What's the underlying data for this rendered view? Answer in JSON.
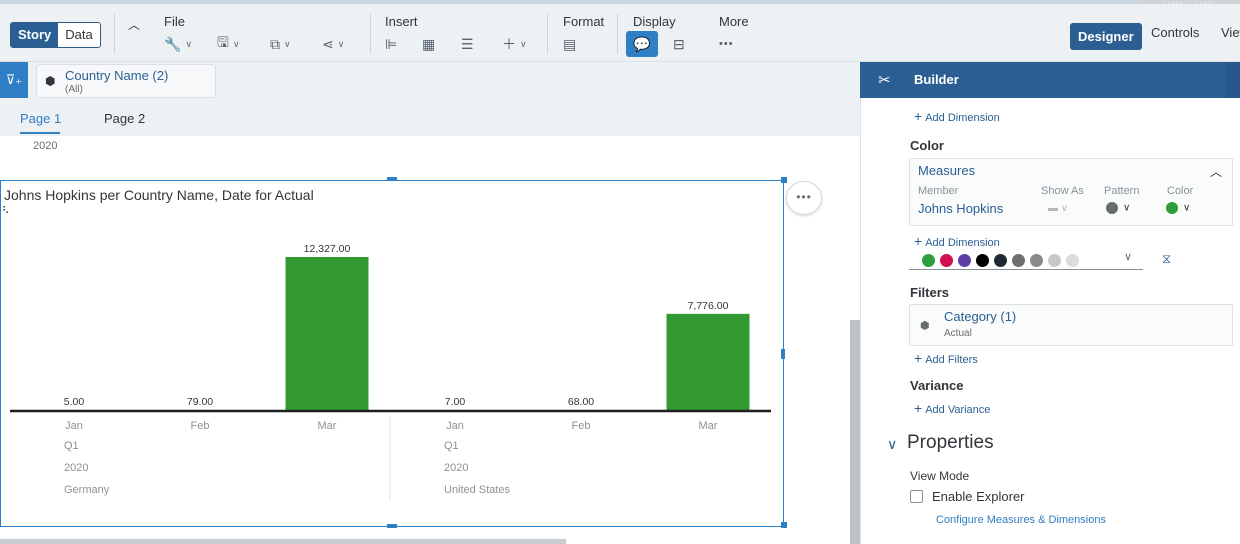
{
  "toolbar": {
    "mode_tabs": [
      "Story",
      "Data"
    ],
    "groups": {
      "file": "File",
      "insert": "Insert",
      "format": "Format",
      "display": "Display",
      "more": "More"
    },
    "right_tabs": [
      "Designer",
      "Controls",
      "View"
    ]
  },
  "filter": {
    "title": "Country Name (2)",
    "subtitle": "(All)"
  },
  "pages": [
    "Page 1",
    "Page 2"
  ],
  "canvas": {
    "year_label": "2020"
  },
  "chart_data": {
    "type": "bar",
    "title": "Johns Hopkins per Country Name, Date for Actual",
    "series": [
      {
        "name": "Johns Hopkins",
        "values": [
          5,
          79,
          12327,
          7,
          68,
          7776
        ]
      }
    ],
    "value_labels": [
      "5.00",
      "79.00",
      "12,327.00",
      "7.00",
      "68.00",
      "7,776.00"
    ],
    "categories": [
      "Jan",
      "Feb",
      "Mar",
      "Jan",
      "Feb",
      "Mar"
    ],
    "groups": [
      {
        "quarter": "Q1",
        "year": "2020",
        "country": "Germany"
      },
      {
        "quarter": "Q1",
        "year": "2020",
        "country": "United States"
      }
    ],
    "bar_color": "#339932",
    "ylim": [
      0,
      12327
    ]
  },
  "builder": {
    "title": "Builder",
    "add_dimension": "Add Dimension",
    "color_heading": "Color",
    "measures_label": "Measures",
    "col_member": "Member",
    "col_show_as": "Show As",
    "col_pattern": "Pattern",
    "col_color": "Color",
    "member_value": "Johns Hopkins",
    "palette": [
      "#2e9e3e",
      "#d1114f",
      "#5b3fa6",
      "#000000",
      "#1f2a36",
      "#6e6e6e",
      "#8a8a8a",
      "#c8c8c8",
      "#dcdcdc"
    ],
    "filters_heading": "Filters",
    "filter_name": "Category (1)",
    "filter_value": "Actual",
    "add_filters": "Add Filters",
    "variance_heading": "Variance",
    "add_variance": "Add Variance",
    "properties_heading": "Properties",
    "view_mode_label": "View Mode",
    "enable_explorer": "Enable Explorer",
    "configure_link": "Configure Measures & Dimensions"
  }
}
